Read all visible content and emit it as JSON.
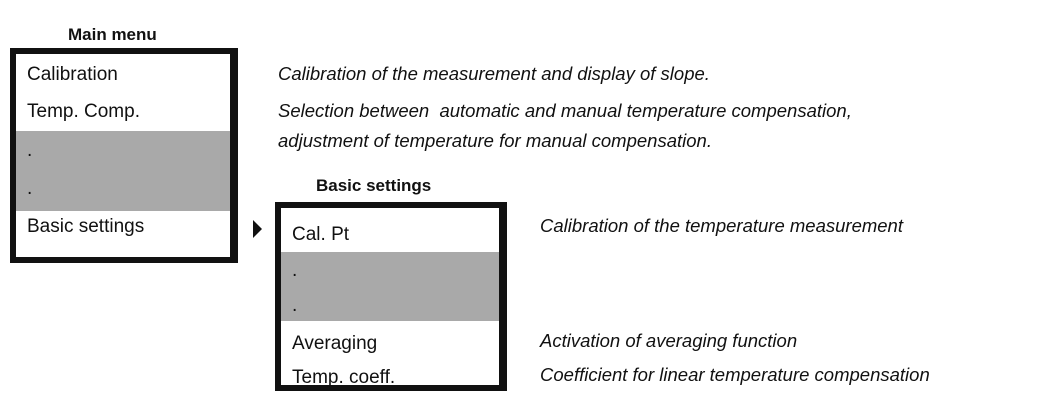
{
  "main_menu": {
    "title": "Main menu",
    "items": [
      "Calibration",
      "Temp. Comp.",
      ".",
      ".",
      "Basic settings"
    ],
    "descriptions": [
      "Calibration of the measurement and display of slope.",
      "Selection between  automatic and manual temperature compensation,",
      "adjustment of temperature for manual compensation."
    ]
  },
  "basic_settings": {
    "title": "Basic settings",
    "items": [
      "Cal. Pt",
      ".",
      ".",
      "Averaging",
      "Temp. coeff."
    ],
    "descriptions": [
      "Calibration of the temperature measurement",
      "Activation of averaging function",
      "Coefficient for linear temperature compensation"
    ]
  }
}
